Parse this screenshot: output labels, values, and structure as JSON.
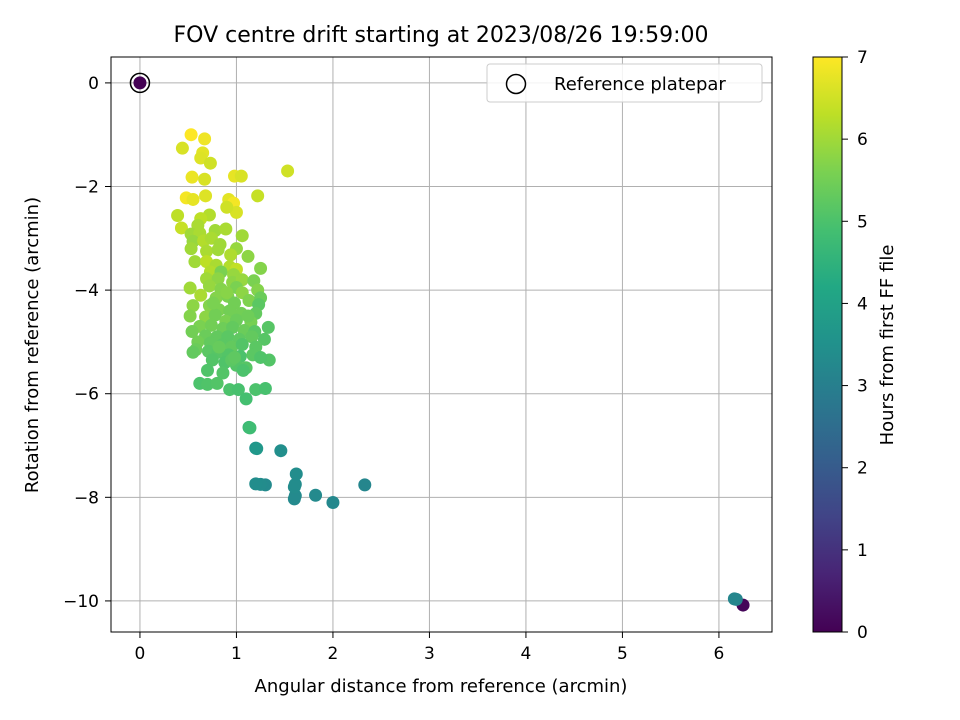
{
  "chart_data": {
    "type": "scatter",
    "title": "FOV centre drift starting at 2023/08/26 19:59:00",
    "xlabel": "Angular distance from reference (arcmin)",
    "ylabel": "Rotation from reference (arcmin)",
    "xlim": [
      -0.3,
      6.55
    ],
    "ylim": [
      -10.6,
      0.5
    ],
    "xticks": [
      0,
      1,
      2,
      3,
      4,
      5,
      6
    ],
    "yticks": [
      0,
      -2,
      -4,
      -6,
      -8,
      -10
    ],
    "grid": true,
    "legend": {
      "position": "top-right",
      "entries": [
        "Reference platepar"
      ]
    },
    "colorbar": {
      "label": "Hours from first FF file",
      "range": [
        0,
        7
      ],
      "ticks": [
        0,
        1,
        2,
        3,
        4,
        5,
        6,
        7
      ],
      "colormap": "viridis"
    },
    "reference_point": {
      "x": 0,
      "y": 0,
      "hours": 0
    },
    "points": [
      [
        6.25,
        -10.08,
        0.1
      ],
      [
        6.18,
        -9.97,
        3.1
      ],
      [
        6.16,
        -9.96,
        3.2
      ],
      [
        2.33,
        -7.76,
        3.2
      ],
      [
        2.0,
        -8.1,
        3.25
      ],
      [
        1.82,
        -7.96,
        3.3
      ],
      [
        1.6,
        -8.03,
        3.3
      ],
      [
        1.61,
        -7.97,
        3.3
      ],
      [
        1.6,
        -7.8,
        3.35
      ],
      [
        1.61,
        -7.75,
        3.35
      ],
      [
        1.62,
        -7.55,
        3.4
      ],
      [
        1.46,
        -7.1,
        3.45
      ],
      [
        1.3,
        -7.76,
        3.3
      ],
      [
        1.25,
        -7.75,
        3.35
      ],
      [
        1.2,
        -7.74,
        3.4
      ],
      [
        1.2,
        -7.05,
        3.6
      ],
      [
        1.21,
        -7.06,
        3.7
      ],
      [
        1.13,
        -6.65,
        4.7
      ],
      [
        1.14,
        -6.66,
        4.8
      ],
      [
        1.53,
        -1.7,
        6.5
      ],
      [
        1.22,
        -2.18,
        6.4
      ],
      [
        0.53,
        -1.0,
        7.0
      ],
      [
        0.67,
        -1.08,
        6.85
      ],
      [
        0.44,
        -1.26,
        6.6
      ],
      [
        0.65,
        -1.35,
        6.7
      ],
      [
        0.63,
        -1.45,
        6.65
      ],
      [
        0.73,
        -1.55,
        6.5
      ],
      [
        0.54,
        -1.82,
        6.8
      ],
      [
        0.67,
        -1.86,
        6.6
      ],
      [
        0.98,
        -1.8,
        6.75
      ],
      [
        1.05,
        -1.8,
        6.6
      ],
      [
        0.48,
        -2.22,
        6.9
      ],
      [
        0.55,
        -2.25,
        6.75
      ],
      [
        0.68,
        -2.18,
        6.65
      ],
      [
        0.92,
        -2.25,
        6.7
      ],
      [
        0.97,
        -2.32,
        6.9
      ],
      [
        1.0,
        -2.5,
        6.6
      ],
      [
        0.9,
        -2.4,
        6.5
      ],
      [
        0.72,
        -2.55,
        6.2
      ],
      [
        0.63,
        -2.62,
        6.3
      ],
      [
        0.39,
        -2.56,
        6.3
      ],
      [
        0.6,
        -2.75,
        6.1
      ],
      [
        0.43,
        -2.8,
        6.4
      ],
      [
        0.53,
        -2.92,
        6.0
      ],
      [
        0.62,
        -2.9,
        6.1
      ],
      [
        0.78,
        -2.85,
        6.0
      ],
      [
        0.89,
        -2.82,
        6.1
      ],
      [
        1.06,
        -2.95,
        6.0
      ],
      [
        0.55,
        -3.06,
        5.9
      ],
      [
        0.66,
        -3.05,
        6.2
      ],
      [
        0.74,
        -3.0,
        6.1
      ],
      [
        0.83,
        -3.12,
        6.0
      ],
      [
        1.0,
        -3.2,
        5.9
      ],
      [
        0.53,
        -3.2,
        6.0
      ],
      [
        0.69,
        -3.25,
        6.1
      ],
      [
        0.81,
        -3.22,
        6.0
      ],
      [
        0.94,
        -3.32,
        6.15
      ],
      [
        1.12,
        -3.35,
        5.8
      ],
      [
        0.57,
        -3.45,
        6.0
      ],
      [
        0.69,
        -3.45,
        6.3
      ],
      [
        0.79,
        -3.52,
        6.1
      ],
      [
        0.93,
        -3.55,
        6.2
      ],
      [
        1.0,
        -3.6,
        6.35
      ],
      [
        1.25,
        -3.58,
        5.7
      ],
      [
        0.73,
        -3.65,
        6.2
      ],
      [
        0.84,
        -3.65,
        5.6
      ],
      [
        0.97,
        -3.7,
        5.9
      ],
      [
        0.69,
        -3.78,
        6.0
      ],
      [
        0.81,
        -3.78,
        5.8
      ],
      [
        0.96,
        -3.85,
        5.8
      ],
      [
        1.06,
        -3.8,
        5.9
      ],
      [
        1.18,
        -3.82,
        5.6
      ],
      [
        0.52,
        -3.96,
        6.0
      ],
      [
        0.72,
        -3.92,
        5.9
      ],
      [
        0.84,
        -3.98,
        5.7
      ],
      [
        1.0,
        -3.95,
        5.6
      ],
      [
        1.06,
        -4.05,
        5.8
      ],
      [
        1.22,
        -4.0,
        5.7
      ],
      [
        0.63,
        -4.1,
        6.1
      ],
      [
        0.79,
        -4.15,
        5.7
      ],
      [
        0.91,
        -4.12,
        5.6
      ],
      [
        0.98,
        -4.25,
        5.5
      ],
      [
        1.13,
        -4.2,
        5.65
      ],
      [
        1.25,
        -4.15,
        5.4
      ],
      [
        1.23,
        -4.28,
        5.2
      ],
      [
        0.55,
        -4.3,
        5.8
      ],
      [
        0.72,
        -4.3,
        5.7
      ],
      [
        0.82,
        -4.38,
        5.6
      ],
      [
        0.93,
        -4.4,
        5.5
      ],
      [
        1.05,
        -4.45,
        5.5
      ],
      [
        1.2,
        -4.45,
        5.3
      ],
      [
        0.52,
        -4.5,
        5.7
      ],
      [
        0.68,
        -4.52,
        5.8
      ],
      [
        0.78,
        -4.48,
        5.5
      ],
      [
        0.89,
        -4.6,
        5.6
      ],
      [
        1.0,
        -4.58,
        5.4
      ],
      [
        1.15,
        -4.62,
        5.55
      ],
      [
        0.62,
        -4.7,
        5.6
      ],
      [
        0.74,
        -4.68,
        5.5
      ],
      [
        0.86,
        -4.74,
        5.45
      ],
      [
        0.96,
        -4.72,
        5.3
      ],
      [
        1.08,
        -4.78,
        5.4
      ],
      [
        1.19,
        -4.8,
        5.2
      ],
      [
        1.33,
        -4.72,
        5.15
      ],
      [
        0.54,
        -4.8,
        5.5
      ],
      [
        0.68,
        -4.88,
        5.4
      ],
      [
        0.8,
        -4.9,
        5.3
      ],
      [
        0.91,
        -4.9,
        5.2
      ],
      [
        1.03,
        -4.95,
        5.25
      ],
      [
        1.16,
        -4.9,
        5.3
      ],
      [
        1.29,
        -4.95,
        5.15
      ],
      [
        0.6,
        -5.0,
        5.5
      ],
      [
        0.73,
        -5.02,
        5.3
      ],
      [
        0.85,
        -5.06,
        5.2
      ],
      [
        0.95,
        -5.1,
        5.3
      ],
      [
        1.06,
        -5.05,
        5.1
      ],
      [
        1.2,
        -5.1,
        5.2
      ],
      [
        0.58,
        -5.15,
        5.4
      ],
      [
        0.71,
        -5.18,
        5.2
      ],
      [
        0.81,
        -5.2,
        5.15
      ],
      [
        0.92,
        -5.25,
        5.1
      ],
      [
        1.04,
        -5.28,
        5.0
      ],
      [
        1.17,
        -5.25,
        5.2
      ],
      [
        1.34,
        -5.35,
        5.1
      ],
      [
        1.25,
        -5.3,
        5.05
      ],
      [
        0.55,
        -5.2,
        5.3
      ],
      [
        0.75,
        -5.35,
        5.1
      ],
      [
        0.88,
        -5.4,
        5.05
      ],
      [
        1.0,
        -5.45,
        5.1
      ],
      [
        1.1,
        -5.5,
        5.15
      ],
      [
        0.82,
        -5.1,
        5.35
      ],
      [
        0.95,
        -5.35,
        5.2
      ],
      [
        1.07,
        -5.55,
        5.0
      ],
      [
        0.7,
        -5.55,
        5.05
      ],
      [
        0.86,
        -5.6,
        5.1
      ],
      [
        0.62,
        -5.8,
        5.0
      ],
      [
        0.7,
        -5.82,
        5.05
      ],
      [
        0.8,
        -5.8,
        5.1
      ],
      [
        0.93,
        -5.92,
        5.0
      ],
      [
        1.02,
        -5.92,
        4.95
      ],
      [
        1.1,
        -6.1,
        4.9
      ],
      [
        1.2,
        -5.92,
        5.0
      ],
      [
        1.3,
        -5.9,
        4.95
      ],
      [
        0.98,
        -5.3,
        5.25
      ],
      [
        0.9,
        -4.05,
        5.75
      ],
      [
        0.76,
        -4.25,
        5.6
      ],
      [
        1.12,
        -4.5,
        5.45
      ]
    ]
  }
}
